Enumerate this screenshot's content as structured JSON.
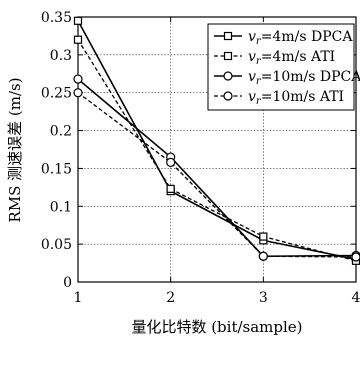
{
  "chart_data": {
    "type": "line",
    "title": "",
    "xlabel": "量化比特数 (bit/sample)",
    "ylabel": "RMS 测速误差 (m/s)",
    "x": [
      1,
      2,
      3,
      4
    ],
    "xlim": [
      1,
      4
    ],
    "ylim": [
      0,
      0.35
    ],
    "x_ticks": [
      "1",
      "2",
      "3",
      "4"
    ],
    "y_ticks": [
      "0",
      "0.05",
      "0.1",
      "0.15",
      "0.2",
      "0.25",
      "0.3",
      "0.35"
    ],
    "grid": true,
    "legend_position": "top-right",
    "series": [
      {
        "name": "vr=4m/s DPCA",
        "legend_sub": "r",
        "legend_rest": "=4m/s DPCA",
        "marker": "square",
        "dash": "solid",
        "values": [
          0.345,
          0.12,
          0.055,
          0.03
        ]
      },
      {
        "name": "vr=4m/s ATI",
        "legend_sub": "r",
        "legend_rest": "=4m/s ATI",
        "marker": "square",
        "dash": "dashed",
        "values": [
          0.32,
          0.123,
          0.06,
          0.028
        ]
      },
      {
        "name": "vr=10m/s DPCA",
        "legend_sub": "r",
        "legend_rest": "=10m/s DPCA",
        "marker": "circle",
        "dash": "solid",
        "values": [
          0.268,
          0.165,
          0.034,
          0.035
        ]
      },
      {
        "name": "vr=10m/s ATI",
        "legend_sub": "r",
        "legend_rest": "=10m/s ATI",
        "marker": "circle",
        "dash": "dashed",
        "values": [
          0.25,
          0.158,
          0.034,
          0.033
        ]
      }
    ]
  }
}
